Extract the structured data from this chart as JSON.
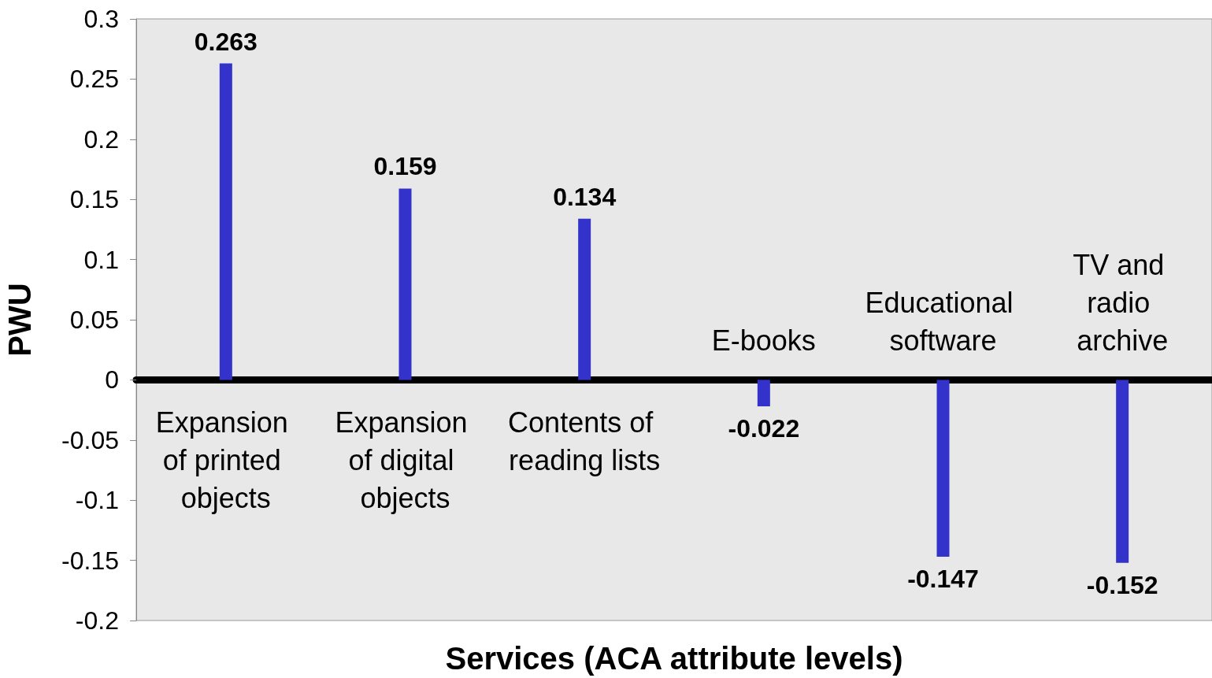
{
  "chart_data": {
    "type": "bar",
    "xlabel": "Services (ACA attribute levels)",
    "ylabel": "PWU",
    "categories": [
      "Expansion of printed objects",
      "Expansion of digital objects",
      "Contents of reading lists",
      "E-books",
      "Educational software",
      "TV and radio archive"
    ],
    "values": [
      0.263,
      0.159,
      0.134,
      -0.022,
      -0.147,
      -0.152
    ],
    "color": "#3333cc",
    "ylim": [
      -0.2,
      0.3
    ],
    "yticks": [
      -0.2,
      -0.15,
      -0.1,
      -0.05,
      0,
      0.05,
      0.1,
      0.15,
      0.2,
      0.25,
      0.3
    ],
    "data_labels": true
  }
}
